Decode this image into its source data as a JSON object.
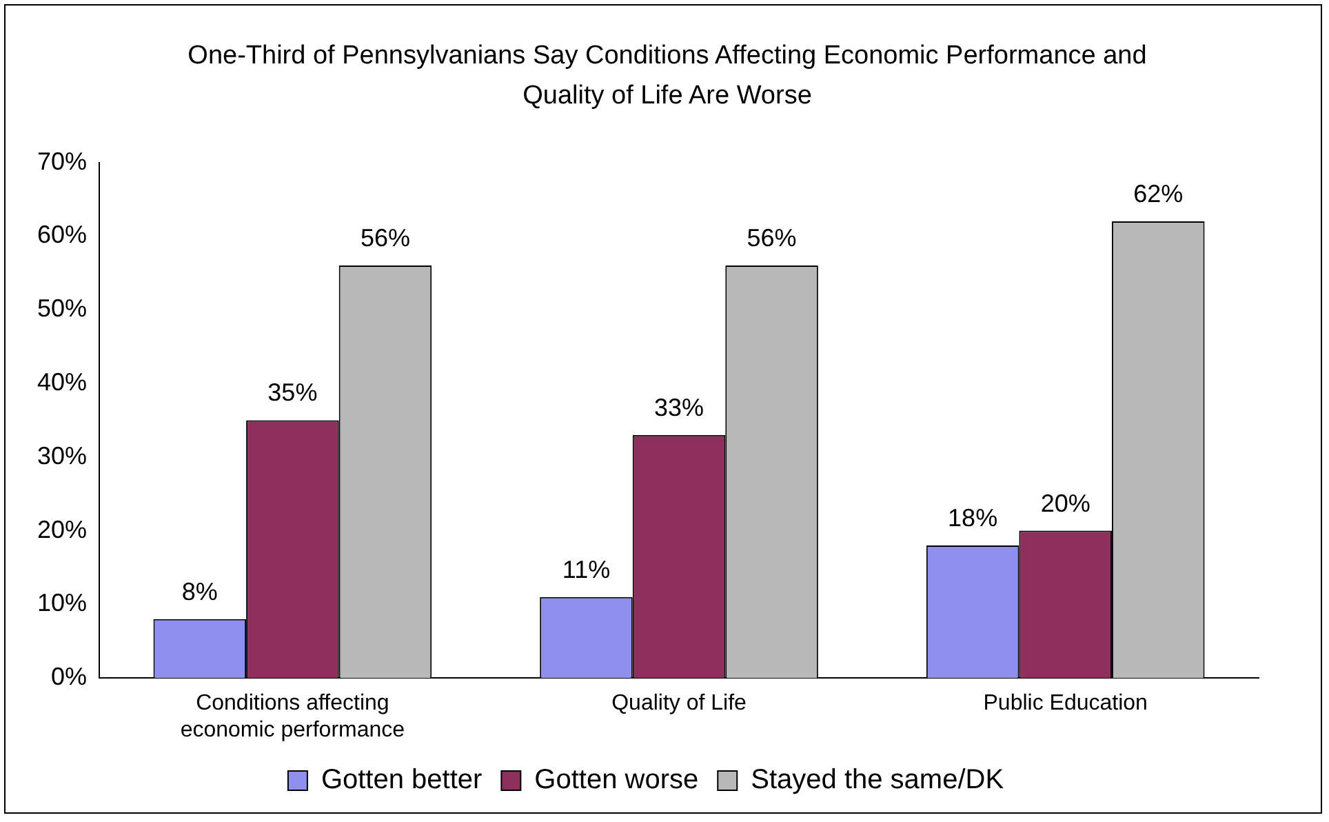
{
  "chart_data": {
    "type": "bar",
    "title": "One-Third of Pennsylvanians Say Conditions Affecting Economic Performance and Quality of Life Are Worse",
    "categories": [
      "Conditions affecting economic performance",
      "Quality of Life",
      "Public Education"
    ],
    "series": [
      {
        "name": "Gotten better",
        "color": "#8f8ff0",
        "values": [
          8,
          11,
          18
        ],
        "value_labels": [
          "8%",
          "11%",
          "18%"
        ]
      },
      {
        "name": "Gotten worse",
        "color": "#8e2f5e",
        "values": [
          35,
          33,
          20
        ],
        "value_labels": [
          "35%",
          "33%",
          "20%"
        ]
      },
      {
        "name": "Stayed the same/DK",
        "color": "#b8b8b8",
        "values": [
          56,
          56,
          62
        ],
        "value_labels": [
          "56%",
          "56%",
          "62%"
        ]
      }
    ],
    "ylim": [
      0,
      70
    ],
    "yticks": [
      {
        "value": 0,
        "label": "0%"
      },
      {
        "value": 10,
        "label": "10%"
      },
      {
        "value": 20,
        "label": "20%"
      },
      {
        "value": 30,
        "label": "30%"
      },
      {
        "value": 40,
        "label": "40%"
      },
      {
        "value": 50,
        "label": "50%"
      },
      {
        "value": 60,
        "label": "60%"
      },
      {
        "value": 70,
        "label": "70%"
      }
    ],
    "grid": false,
    "legend": "bottom"
  }
}
